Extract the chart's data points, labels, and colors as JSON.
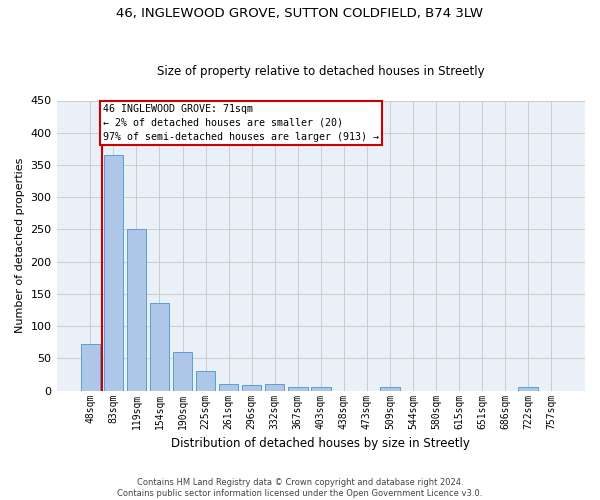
{
  "title1": "46, INGLEWOOD GROVE, SUTTON COLDFIELD, B74 3LW",
  "title2": "Size of property relative to detached houses in Streetly",
  "xlabel": "Distribution of detached houses by size in Streetly",
  "ylabel": "Number of detached properties",
  "bin_labels": [
    "48sqm",
    "83sqm",
    "119sqm",
    "154sqm",
    "190sqm",
    "225sqm",
    "261sqm",
    "296sqm",
    "332sqm",
    "367sqm",
    "403sqm",
    "438sqm",
    "473sqm",
    "509sqm",
    "544sqm",
    "580sqm",
    "615sqm",
    "651sqm",
    "686sqm",
    "722sqm",
    "757sqm"
  ],
  "bar_heights": [
    72,
    365,
    251,
    136,
    60,
    30,
    10,
    8,
    10,
    5,
    6,
    0,
    0,
    5,
    0,
    0,
    0,
    0,
    0,
    5,
    0
  ],
  "bar_color": "#aec6e8",
  "bar_edge_color": "#5a9fd4",
  "annotation_box_text": "46 INGLEWOOD GROVE: 71sqm\n← 2% of detached houses are smaller (20)\n97% of semi-detached houses are larger (913) →",
  "ylim": [
    0,
    450
  ],
  "yticks": [
    0,
    50,
    100,
    150,
    200,
    250,
    300,
    350,
    400,
    450
  ],
  "grid_color": "#cccccc",
  "bg_color": "#eaf0f8",
  "footer_text": "Contains HM Land Registry data © Crown copyright and database right 2024.\nContains public sector information licensed under the Open Government Licence v3.0.",
  "red_line_color": "#cc0000",
  "annotation_box_color": "#ffffff",
  "annotation_box_edge": "#cc0000"
}
